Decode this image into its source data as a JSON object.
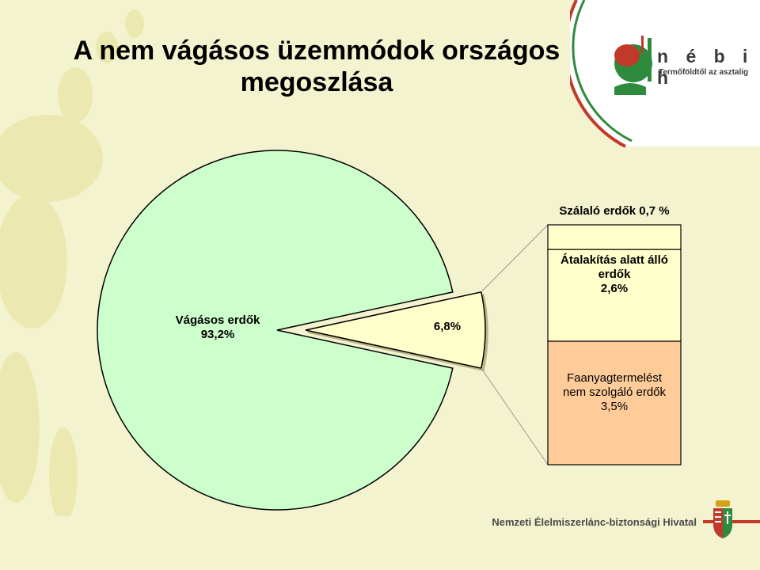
{
  "title": {
    "line1": "A nem vágásos üzemmódok országos",
    "line2": "megoszlása"
  },
  "logo": {
    "name": "n é b i h",
    "slogan": "Termőföldtől az asztalig"
  },
  "footer": {
    "institution": "Nemzeti Élelmiszerlánc-biztonsági Hivatal"
  },
  "colors": {
    "background": "#f4f3cf",
    "pie_main": "#ccffcc",
    "pie_slice": "#ffffcc",
    "bar_top": "#ffffcc",
    "bar_bottom": "#ffcc99",
    "footer_red": "#c0392b",
    "green_accent": "#2e8b3e"
  },
  "chart_data": {
    "type": "pie",
    "subtype": "pie-of-bar",
    "pie": {
      "slices": [
        {
          "label": "Vágásos erdők",
          "value": 93.2,
          "display": "Vágásos erdők 93,2%"
        },
        {
          "label": "",
          "value": 6.8,
          "display": "6,8%"
        }
      ]
    },
    "bar": {
      "segments": [
        {
          "label": "Szálaló erdők",
          "value": 0.7,
          "display": "Szálaló erdők 0,7 %"
        },
        {
          "label": "Átalakítás alatt álló erdők",
          "value": 2.6,
          "display_lines": [
            "Átalakítás alatt álló",
            "erdők",
            "2,6%"
          ]
        },
        {
          "label": "Faanyagtermelést nem szolgáló erdők",
          "value": 3.5,
          "display_lines": [
            "Faanyagtermelést",
            "nem szolgáló erdők",
            "3,5%"
          ]
        }
      ]
    }
  }
}
